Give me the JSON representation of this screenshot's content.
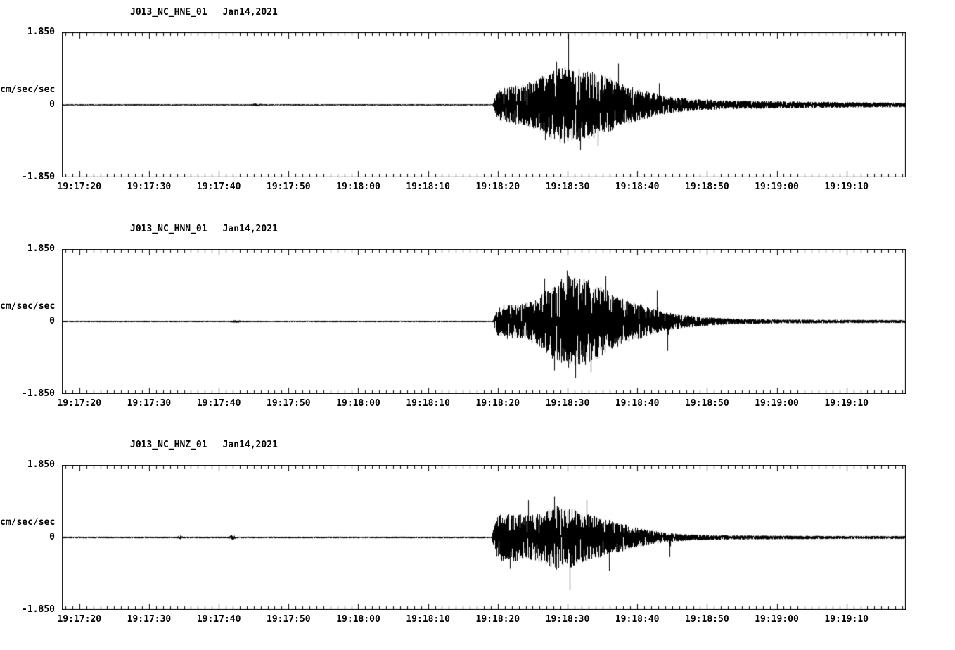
{
  "page": {
    "background": "#ffffff",
    "foreground": "#000000"
  },
  "chart_data": [
    {
      "type": "line",
      "title": "J013_NC_HNE_01",
      "date_label": "Jan14,2021",
      "ylabel": "cm/sec/sec",
      "ytick_top": "1.850",
      "ytick_mid": "0",
      "ytick_bottom": "-1.850",
      "ylim": [
        -1.85,
        1.85
      ],
      "x_span_seconds": 121,
      "x_tick_labels": [
        "19:17:20",
        "19:17:30",
        "19:17:40",
        "19:17:50",
        "19:18:00",
        "19:18:10",
        "19:18:20",
        "19:18:30",
        "19:18:40",
        "19:18:50",
        "19:19:00",
        "19:19:10"
      ],
      "x_tick_offsets_s": [
        2.5,
        12.5,
        22.5,
        32.5,
        42.5,
        52.5,
        62.5,
        72.5,
        82.5,
        92.5,
        102.5,
        112.5
      ],
      "minor_tick_interval_s": 1,
      "seed": 101,
      "envelope": [
        [
          0,
          0.018
        ],
        [
          27,
          0.018
        ],
        [
          28,
          0.042
        ],
        [
          29,
          0.018
        ],
        [
          61.8,
          0.018
        ],
        [
          62.3,
          0.3
        ],
        [
          63,
          0.42
        ],
        [
          64,
          0.45
        ],
        [
          65,
          0.5
        ],
        [
          66,
          0.52
        ],
        [
          67,
          0.58
        ],
        [
          68,
          0.65
        ],
        [
          69,
          0.75
        ],
        [
          70,
          0.85
        ],
        [
          71,
          0.95
        ],
        [
          72,
          1.0
        ],
        [
          73,
          0.9
        ],
        [
          74,
          0.95
        ],
        [
          75,
          0.85
        ],
        [
          76,
          0.9
        ],
        [
          77,
          0.75
        ],
        [
          78,
          0.8
        ],
        [
          79,
          0.65
        ],
        [
          80,
          0.55
        ],
        [
          81,
          0.5
        ],
        [
          82,
          0.45
        ],
        [
          83,
          0.4
        ],
        [
          84,
          0.35
        ],
        [
          85,
          0.3
        ],
        [
          86,
          0.26
        ],
        [
          87,
          0.22
        ],
        [
          88,
          0.2
        ],
        [
          90,
          0.16
        ],
        [
          92,
          0.14
        ],
        [
          94,
          0.12
        ],
        [
          97,
          0.11
        ],
        [
          100,
          0.1
        ],
        [
          104,
          0.09
        ],
        [
          108,
          0.08
        ],
        [
          113,
          0.07
        ],
        [
          121,
          0.06
        ]
      ],
      "spikes": [
        [
          72.6,
          1.82
        ],
        [
          70.9,
          1.1
        ],
        [
          74.3,
          -1.15
        ],
        [
          76.8,
          -1.05
        ],
        [
          79.8,
          1.05
        ],
        [
          69.3,
          -0.9
        ],
        [
          85.6,
          0.55
        ]
      ]
    },
    {
      "type": "line",
      "title": "J013_NC_HNN_01",
      "date_label": "Jan14,2021",
      "ylabel": "cm/sec/sec",
      "ytick_top": "1.850",
      "ytick_mid": "0",
      "ytick_bottom": "-1.850",
      "ylim": [
        -1.85,
        1.85
      ],
      "x_span_seconds": 121,
      "x_tick_labels": [
        "19:17:20",
        "19:17:30",
        "19:17:40",
        "19:17:50",
        "19:18:00",
        "19:18:10",
        "19:18:20",
        "19:18:30",
        "19:18:40",
        "19:18:50",
        "19:19:00",
        "19:19:10"
      ],
      "x_tick_offsets_s": [
        2.5,
        12.5,
        22.5,
        32.5,
        42.5,
        52.5,
        62.5,
        72.5,
        82.5,
        92.5,
        102.5,
        112.5
      ],
      "minor_tick_interval_s": 1,
      "seed": 202,
      "envelope": [
        [
          0,
          0.02
        ],
        [
          24,
          0.02
        ],
        [
          25,
          0.035
        ],
        [
          26,
          0.02
        ],
        [
          61.8,
          0.02
        ],
        [
          62.3,
          0.32
        ],
        [
          63,
          0.42
        ],
        [
          64,
          0.45
        ],
        [
          65,
          0.42
        ],
        [
          66,
          0.45
        ],
        [
          67,
          0.5
        ],
        [
          68,
          0.6
        ],
        [
          69,
          0.75
        ],
        [
          70,
          0.9
        ],
        [
          71,
          1.05
        ],
        [
          72,
          1.15
        ],
        [
          73,
          1.2
        ],
        [
          74,
          1.1
        ],
        [
          75,
          1.15
        ],
        [
          76,
          1.0
        ],
        [
          77,
          0.95
        ],
        [
          78,
          0.85
        ],
        [
          79,
          0.7
        ],
        [
          80,
          0.62
        ],
        [
          81,
          0.55
        ],
        [
          82,
          0.5
        ],
        [
          83,
          0.45
        ],
        [
          84,
          0.38
        ],
        [
          85,
          0.32
        ],
        [
          86,
          0.27
        ],
        [
          87,
          0.23
        ],
        [
          88,
          0.2
        ],
        [
          90,
          0.15
        ],
        [
          92,
          0.12
        ],
        [
          94,
          0.09
        ],
        [
          97,
          0.07
        ],
        [
          100,
          0.06
        ],
        [
          105,
          0.05
        ],
        [
          110,
          0.045
        ],
        [
          121,
          0.04
        ]
      ],
      "spikes": [
        [
          72.4,
          1.3
        ],
        [
          73.6,
          -1.45
        ],
        [
          70.6,
          -1.25
        ],
        [
          75.8,
          -1.3
        ],
        [
          77.9,
          1.15
        ],
        [
          69.2,
          1.1
        ],
        [
          85.3,
          0.8
        ],
        [
          86.8,
          -0.75
        ]
      ]
    },
    {
      "type": "line",
      "title": "J013_NC_HNZ_01",
      "date_label": "Jan14,2021",
      "ylabel": "cm/sec/sec",
      "ytick_top": "1.850",
      "ytick_mid": "0",
      "ytick_bottom": "-1.850",
      "ylim": [
        -1.85,
        1.85
      ],
      "x_span_seconds": 121,
      "x_tick_labels": [
        "19:17:20",
        "19:17:30",
        "19:17:40",
        "19:17:50",
        "19:18:00",
        "19:18:10",
        "19:18:20",
        "19:18:30",
        "19:18:40",
        "19:18:50",
        "19:19:00",
        "19:19:10"
      ],
      "x_tick_offsets_s": [
        2.5,
        12.5,
        22.5,
        32.5,
        42.5,
        52.5,
        62.5,
        72.5,
        82.5,
        92.5,
        102.5,
        112.5
      ],
      "minor_tick_interval_s": 1,
      "seed": 303,
      "envelope": [
        [
          0,
          0.022
        ],
        [
          16.5,
          0.022
        ],
        [
          17,
          0.05
        ],
        [
          17.5,
          0.022
        ],
        [
          23.9,
          0.022
        ],
        [
          24.4,
          0.075
        ],
        [
          25,
          0.022
        ],
        [
          61.6,
          0.022
        ],
        [
          62,
          0.3
        ],
        [
          62.5,
          0.6
        ],
        [
          63,
          0.62
        ],
        [
          64,
          0.6
        ],
        [
          65,
          0.62
        ],
        [
          66,
          0.58
        ],
        [
          67,
          0.62
        ],
        [
          68,
          0.6
        ],
        [
          69,
          0.65
        ],
        [
          70,
          0.75
        ],
        [
          70.8,
          0.85
        ],
        [
          71.5,
          0.75
        ],
        [
          72,
          0.7
        ],
        [
          73,
          0.78
        ],
        [
          74,
          0.68
        ],
        [
          75,
          0.62
        ],
        [
          76,
          0.58
        ],
        [
          77,
          0.52
        ],
        [
          78,
          0.48
        ],
        [
          79,
          0.42
        ],
        [
          80,
          0.38
        ],
        [
          81,
          0.33
        ],
        [
          82,
          0.28
        ],
        [
          83,
          0.24
        ],
        [
          84,
          0.2
        ],
        [
          85,
          0.17
        ],
        [
          86,
          0.14
        ],
        [
          87,
          0.12
        ],
        [
          88,
          0.1
        ],
        [
          90,
          0.08
        ],
        [
          93,
          0.065
        ],
        [
          96,
          0.055
        ],
        [
          100,
          0.05
        ],
        [
          105,
          0.045
        ],
        [
          110,
          0.04
        ],
        [
          121,
          0.038
        ]
      ],
      "spikes": [
        [
          70.6,
          1.05
        ],
        [
          72.8,
          -1.33
        ],
        [
          66.9,
          0.95
        ],
        [
          64.2,
          -0.8
        ],
        [
          75.2,
          0.95
        ],
        [
          78.4,
          -0.85
        ],
        [
          87.1,
          -0.5
        ]
      ]
    }
  ]
}
